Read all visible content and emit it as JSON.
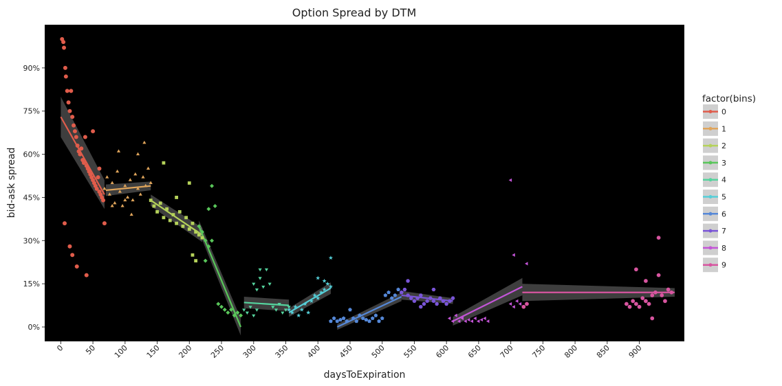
{
  "chart_data": {
    "type": "scatter",
    "title": "Option Spread by DTM",
    "xlabel": "daysToExpiration",
    "ylabel": "bid-ask spread",
    "xlim": [
      -25,
      970
    ],
    "ylim": [
      -0.05,
      1.05
    ],
    "x_ticks": [
      0,
      50,
      100,
      150,
      200,
      250,
      300,
      350,
      400,
      450,
      500,
      550,
      600,
      650,
      700,
      750,
      800,
      850,
      900
    ],
    "y_ticks": [
      0,
      0.15,
      0.3,
      0.45,
      0.6,
      0.75,
      0.9
    ],
    "y_tick_labels": [
      "0%",
      "15%",
      "30%",
      "45%",
      "60%",
      "75%",
      "90%"
    ],
    "panel_background": "#000000",
    "grid": false,
    "legend": {
      "title": "factor(bins)",
      "placement": "right"
    },
    "series": [
      {
        "name": "0",
        "color": "#e05c4b",
        "marker": "circle",
        "x": [
          2,
          4,
          5,
          7,
          8,
          10,
          12,
          14,
          16,
          18,
          20,
          22,
          24,
          26,
          28,
          30,
          32,
          34,
          36,
          38,
          40,
          42,
          44,
          46,
          48,
          50,
          52,
          54,
          56,
          58,
          60,
          62,
          64,
          66,
          68,
          6,
          14,
          18,
          25,
          40,
          50,
          60
        ],
        "y": [
          1.0,
          0.99,
          0.97,
          0.9,
          0.87,
          0.82,
          0.78,
          0.75,
          0.82,
          0.73,
          0.7,
          0.68,
          0.66,
          0.63,
          0.61,
          0.6,
          0.62,
          0.58,
          0.57,
          0.66,
          0.56,
          0.55,
          0.54,
          0.53,
          0.52,
          0.51,
          0.5,
          0.49,
          0.48,
          0.52,
          0.47,
          0.46,
          0.45,
          0.44,
          0.36,
          0.36,
          0.28,
          0.25,
          0.21,
          0.18,
          0.68,
          0.55
        ],
        "fit": {
          "x": [
            0,
            68
          ],
          "y": [
            0.73,
            0.46
          ],
          "band": [
            0.07,
            0.05
          ]
        }
      },
      {
        "name": "1",
        "color": "#e0a55b",
        "marker": "triangle",
        "x": [
          68,
          72,
          76,
          80,
          84,
          88,
          92,
          96,
          100,
          104,
          108,
          112,
          116,
          120,
          124,
          128,
          132,
          136,
          140,
          80,
          90,
          100,
          110,
          120,
          130
        ],
        "y": [
          0.48,
          0.52,
          0.46,
          0.5,
          0.43,
          0.54,
          0.47,
          0.42,
          0.49,
          0.45,
          0.51,
          0.44,
          0.53,
          0.48,
          0.46,
          0.52,
          0.49,
          0.55,
          0.5,
          0.42,
          0.61,
          0.44,
          0.39,
          0.6,
          0.64
        ],
        "fit": {
          "x": [
            70,
            140
          ],
          "y": [
            0.475,
            0.49
          ],
          "band": [
            0.02,
            0.015
          ]
        }
      },
      {
        "name": "2",
        "color": "#b5d25a",
        "marker": "square",
        "x": [
          140,
          145,
          150,
          155,
          160,
          165,
          170,
          175,
          180,
          185,
          190,
          195,
          200,
          205,
          210,
          215,
          220,
          160,
          180,
          200,
          205,
          210
        ],
        "y": [
          0.44,
          0.42,
          0.4,
          0.43,
          0.38,
          0.41,
          0.37,
          0.39,
          0.36,
          0.4,
          0.35,
          0.38,
          0.34,
          0.36,
          0.33,
          0.32,
          0.31,
          0.57,
          0.45,
          0.5,
          0.25,
          0.23
        ],
        "fit": {
          "x": [
            140,
            220
          ],
          "y": [
            0.44,
            0.32
          ],
          "band": [
            0.02,
            0.025
          ]
        }
      },
      {
        "name": "3",
        "color": "#59c65a",
        "marker": "diamond",
        "x": [
          215,
          220,
          225,
          230,
          235,
          240,
          245,
          250,
          255,
          260,
          265,
          270,
          275,
          280,
          225,
          230,
          235
        ],
        "y": [
          0.35,
          0.33,
          0.3,
          0.28,
          0.49,
          0.42,
          0.08,
          0.07,
          0.06,
          0.05,
          0.06,
          0.04,
          0.05,
          0.04,
          0.23,
          0.41,
          0.3
        ],
        "fit": {
          "x": [
            215,
            280
          ],
          "y": [
            0.35,
            0.0
          ],
          "band": [
            0.02,
            0.03
          ]
        }
      },
      {
        "name": "4",
        "color": "#55d49e",
        "marker": "triangle-down",
        "x": [
          285,
          290,
          295,
          300,
          305,
          310,
          315,
          320,
          325,
          330,
          335,
          340,
          345,
          350,
          355,
          300,
          305,
          310
        ],
        "y": [
          0.06,
          0.05,
          0.07,
          0.04,
          0.06,
          0.17,
          0.14,
          0.2,
          0.15,
          0.07,
          0.06,
          0.08,
          0.05,
          0.06,
          0.07,
          0.15,
          0.13,
          0.2
        ],
        "fit": {
          "x": [
            285,
            355
          ],
          "y": [
            0.085,
            0.075
          ],
          "band": [
            0.02,
            0.02
          ]
        }
      },
      {
        "name": "5",
        "color": "#55cfd8",
        "marker": "star",
        "x": [
          355,
          360,
          365,
          370,
          375,
          380,
          385,
          390,
          395,
          400,
          405,
          410,
          415,
          420,
          400,
          410,
          420
        ],
        "y": [
          0.06,
          0.05,
          0.07,
          0.04,
          0.06,
          0.08,
          0.05,
          0.09,
          0.11,
          0.1,
          0.12,
          0.13,
          0.15,
          0.14,
          0.17,
          0.16,
          0.24
        ],
        "fit": {
          "x": [
            355,
            420
          ],
          "y": [
            0.05,
            0.135
          ],
          "band": [
            0.015,
            0.02
          ]
        }
      },
      {
        "name": "6",
        "color": "#5588d8",
        "marker": "pentagon",
        "x": [
          420,
          425,
          430,
          435,
          440,
          445,
          450,
          455,
          460,
          465,
          470,
          475,
          480,
          485,
          490,
          495,
          500,
          505,
          510,
          515,
          520,
          525,
          530
        ],
        "y": [
          0.02,
          0.03,
          0.02,
          0.025,
          0.03,
          0.02,
          0.06,
          0.03,
          0.02,
          0.04,
          0.03,
          0.025,
          0.02,
          0.03,
          0.04,
          0.02,
          0.03,
          0.11,
          0.12,
          0.1,
          0.11,
          0.13,
          0.12
        ],
        "fit": {
          "x": [
            430,
            530
          ],
          "y": [
            0.0,
            0.105
          ],
          "band": [
            0.01,
            0.015
          ]
        }
      },
      {
        "name": "7",
        "color": "#7a55d8",
        "marker": "hexagon",
        "x": [
          530,
          535,
          540,
          545,
          550,
          555,
          560,
          565,
          570,
          575,
          580,
          585,
          590,
          595,
          600,
          605,
          610,
          540,
          560,
          580
        ],
        "y": [
          0.12,
          0.13,
          0.11,
          0.1,
          0.09,
          0.1,
          0.11,
          0.08,
          0.09,
          0.1,
          0.09,
          0.08,
          0.1,
          0.09,
          0.08,
          0.09,
          0.1,
          0.16,
          0.07,
          0.13
        ],
        "fit": {
          "x": [
            530,
            610
          ],
          "y": [
            0.11,
            0.09
          ],
          "band": [
            0.015,
            0.01
          ]
        }
      },
      {
        "name": "8",
        "color": "#c455d8",
        "marker": "triangle-left",
        "x": [
          605,
          610,
          615,
          620,
          625,
          630,
          635,
          640,
          645,
          650,
          655,
          660,
          665,
          700,
          705,
          710,
          715,
          720,
          725,
          700,
          705,
          725
        ],
        "y": [
          0.03,
          0.02,
          0.04,
          0.02,
          0.03,
          0.02,
          0.025,
          0.02,
          0.03,
          0.02,
          0.025,
          0.03,
          0.02,
          0.08,
          0.07,
          0.09,
          0.08,
          0.07,
          0.08,
          0.51,
          0.25,
          0.22
        ],
        "fit": {
          "x": [
            610,
            718
          ],
          "y": [
            0.02,
            0.14
          ],
          "band": [
            0.015,
            0.03
          ]
        }
      },
      {
        "name": "9",
        "color": "#d855a0",
        "marker": "octagon",
        "x": [
          720,
          725,
          880,
          885,
          890,
          895,
          900,
          905,
          910,
          915,
          920,
          925,
          930,
          935,
          940,
          945,
          950,
          895,
          910,
          920,
          930
        ],
        "y": [
          0.07,
          0.08,
          0.08,
          0.07,
          0.09,
          0.08,
          0.07,
          0.1,
          0.09,
          0.08,
          0.11,
          0.12,
          0.18,
          0.11,
          0.09,
          0.13,
          0.12,
          0.2,
          0.16,
          0.03,
          0.31
        ],
        "fit": {
          "x": [
            718,
            955
          ],
          "y": [
            0.12,
            0.12
          ],
          "band": [
            0.03,
            0.015
          ]
        }
      }
    ]
  }
}
